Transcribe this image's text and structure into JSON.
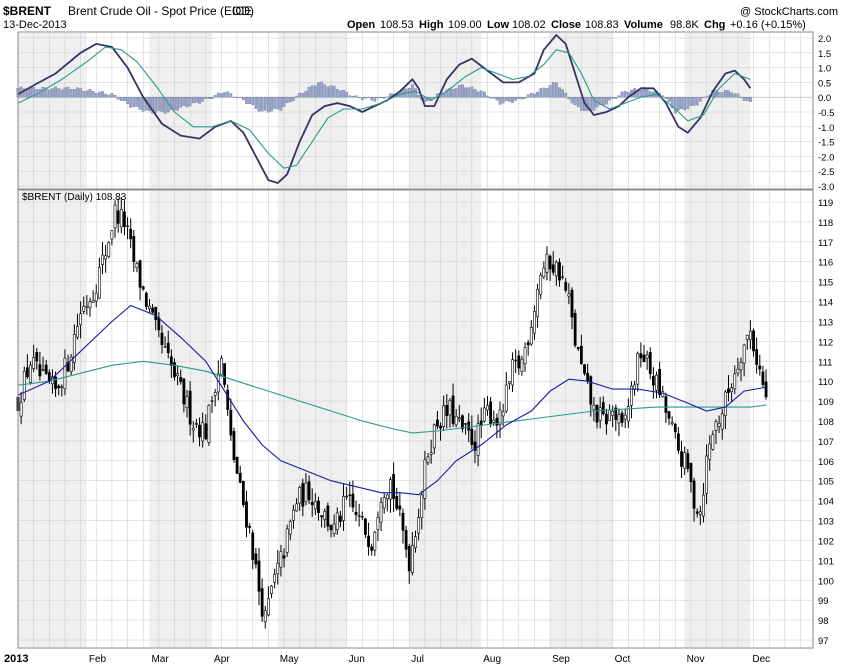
{
  "header": {
    "symbol": "$BRENT",
    "name": "Brent Crude Oil - Spot Price (EOD)",
    "exchange": "ICE",
    "date": "13-Dec-2013",
    "watermark": "@ StockCharts.com",
    "quote": {
      "open_label": "Open",
      "open": "108.53",
      "high_label": "High",
      "high": "109.00",
      "low_label": "Low",
      "low": "108.02",
      "close_label": "Close",
      "close": "108.83",
      "volume_label": "Volume",
      "volume": "98.8K",
      "chg_label": "Chg",
      "chg": "+0.16 (+0.15%)",
      "chg_color": "#cc0000"
    }
  },
  "chart_data": [
    {
      "type": "line",
      "panel": "indicator",
      "ylim": [
        -3.0,
        2.0
      ],
      "y_ticks": [
        "2.0",
        "1.5",
        "1.0",
        "0.5",
        "0.0",
        "-0.5",
        "-1.0",
        "-1.5",
        "-2.0",
        "-2.5",
        "-3.0"
      ],
      "series": [
        {
          "role": "macd",
          "color": "#333366",
          "points": [
            [
              0,
              0.1
            ],
            [
              5,
              0.4
            ],
            [
              12,
              0.8
            ],
            [
              20,
              1.5
            ],
            [
              25,
              1.8
            ],
            [
              30,
              1.7
            ],
            [
              35,
              1.0
            ],
            [
              40,
              0.0
            ],
            [
              46,
              -0.9
            ],
            [
              52,
              -1.3
            ],
            [
              58,
              -1.4
            ],
            [
              63,
              -1.0
            ],
            [
              68,
              -0.8
            ],
            [
              72,
              -1.2
            ],
            [
              76,
              -2.0
            ],
            [
              80,
              -2.8
            ],
            [
              83,
              -2.9
            ],
            [
              86,
              -2.6
            ],
            [
              90,
              -1.5
            ],
            [
              94,
              -0.6
            ],
            [
              98,
              -0.3
            ],
            [
              102,
              -0.2
            ],
            [
              106,
              -0.3
            ],
            [
              110,
              -0.5
            ],
            [
              114,
              -0.3
            ],
            [
              118,
              -0.1
            ],
            [
              122,
              0.2
            ],
            [
              126,
              0.6
            ],
            [
              128,
              0.3
            ],
            [
              130,
              -0.3
            ],
            [
              133,
              -0.3
            ],
            [
              137,
              0.6
            ],
            [
              141,
              1.1
            ],
            [
              145,
              1.3
            ],
            [
              150,
              0.9
            ],
            [
              155,
              0.5
            ],
            [
              160,
              0.5
            ],
            [
              165,
              0.8
            ],
            [
              168,
              1.6
            ],
            [
              172,
              2.1
            ],
            [
              175,
              1.8
            ],
            [
              178,
              0.8
            ],
            [
              181,
              -0.2
            ],
            [
              184,
              -0.6
            ],
            [
              188,
              -0.5
            ],
            [
              192,
              -0.3
            ],
            [
              195,
              0.0
            ],
            [
              199,
              0.3
            ],
            [
              203,
              0.3
            ],
            [
              207,
              -0.2
            ],
            [
              211,
              -1.0
            ],
            [
              214,
              -1.2
            ],
            [
              218,
              -0.7
            ],
            [
              222,
              0.2
            ],
            [
              226,
              0.8
            ],
            [
              229,
              0.9
            ],
            [
              232,
              0.6
            ],
            [
              234,
              0.3
            ]
          ]
        },
        {
          "role": "signal",
          "color": "#2a9a8a",
          "points": [
            [
              0,
              -0.2
            ],
            [
              6,
              0.1
            ],
            [
              14,
              0.6
            ],
            [
              22,
              1.2
            ],
            [
              28,
              1.7
            ],
            [
              33,
              1.6
            ],
            [
              38,
              1.2
            ],
            [
              44,
              0.4
            ],
            [
              50,
              -0.5
            ],
            [
              56,
              -1.0
            ],
            [
              62,
              -1.0
            ],
            [
              68,
              -0.8
            ],
            [
              74,
              -1.1
            ],
            [
              80,
              -1.9
            ],
            [
              85,
              -2.4
            ],
            [
              89,
              -2.3
            ],
            [
              94,
              -1.5
            ],
            [
              99,
              -0.7
            ],
            [
              104,
              -0.4
            ],
            [
              110,
              -0.4
            ],
            [
              116,
              -0.2
            ],
            [
              122,
              0.1
            ],
            [
              127,
              0.2
            ],
            [
              132,
              -0.1
            ],
            [
              137,
              0.2
            ],
            [
              143,
              0.7
            ],
            [
              148,
              1.0
            ],
            [
              153,
              0.8
            ],
            [
              158,
              0.6
            ],
            [
              163,
              0.7
            ],
            [
              168,
              1.1
            ],
            [
              172,
              1.6
            ],
            [
              176,
              1.5
            ],
            [
              180,
              0.8
            ],
            [
              184,
              -0.1
            ],
            [
              189,
              -0.4
            ],
            [
              194,
              -0.2
            ],
            [
              199,
              0.0
            ],
            [
              204,
              0.1
            ],
            [
              209,
              -0.3
            ],
            [
              214,
              -0.8
            ],
            [
              219,
              -0.6
            ],
            [
              224,
              0.3
            ],
            [
              229,
              0.8
            ],
            [
              234,
              0.6
            ]
          ]
        }
      ],
      "histogram": {
        "role": "macd-histogram",
        "color": "#9aa6c8",
        "values": [
          [
            0,
            0.3
          ],
          [
            6,
            0.3
          ],
          [
            12,
            0.3
          ],
          [
            18,
            0.3
          ],
          [
            24,
            0.2
          ],
          [
            30,
            0.1
          ],
          [
            36,
            -0.3
          ],
          [
            42,
            -0.5
          ],
          [
            48,
            -0.5
          ],
          [
            54,
            -0.3
          ],
          [
            60,
            -0.1
          ],
          [
            66,
            0.2
          ],
          [
            72,
            -0.1
          ],
          [
            78,
            -0.5
          ],
          [
            84,
            -0.4
          ],
          [
            90,
            0.1
          ],
          [
            96,
            0.5
          ],
          [
            102,
            0.3
          ],
          [
            108,
            0.0
          ],
          [
            114,
            -0.1
          ],
          [
            120,
            0.1
          ],
          [
            126,
            0.4
          ],
          [
            130,
            -0.2
          ],
          [
            136,
            0.2
          ],
          [
            142,
            0.4
          ],
          [
            148,
            0.2
          ],
          [
            154,
            -0.2
          ],
          [
            160,
            -0.1
          ],
          [
            166,
            0.2
          ],
          [
            172,
            0.5
          ],
          [
            178,
            -0.3
          ],
          [
            182,
            -0.5
          ],
          [
            188,
            -0.2
          ],
          [
            194,
            0.2
          ],
          [
            200,
            0.3
          ],
          [
            206,
            0.1
          ],
          [
            210,
            -0.5
          ],
          [
            216,
            -0.3
          ],
          [
            222,
            0.2
          ],
          [
            228,
            0.2
          ],
          [
            234,
            -0.2
          ]
        ]
      }
    },
    {
      "type": "candlestick",
      "panel": "price",
      "legend": "$BRENT (Daily) 108.83",
      "ylim": [
        97,
        119
      ],
      "y_ticks": [
        "119",
        "118",
        "117",
        "116",
        "115",
        "114",
        "113",
        "112",
        "111",
        "110",
        "109",
        "108",
        "107",
        "106",
        "105",
        "104",
        "103",
        "102",
        "101",
        "100",
        "99",
        "98",
        "97"
      ],
      "x_ticks": [
        {
          "label": "2013",
          "day": 0
        },
        {
          "label": "Feb",
          "day": 22
        },
        {
          "label": "Mar",
          "day": 42
        },
        {
          "label": "Apr",
          "day": 62
        },
        {
          "label": "May",
          "day": 83
        },
        {
          "label": "Jun",
          "day": 105
        },
        {
          "label": "Jul",
          "day": 125
        },
        {
          "label": "Aug",
          "day": 148
        },
        {
          "label": "Sep",
          "day": 170
        },
        {
          "label": "Oct",
          "day": 190
        },
        {
          "label": "Nov",
          "day": 213
        },
        {
          "label": "Dec",
          "day": 234
        }
      ],
      "days_total": 254,
      "close_path": [
        [
          0,
          109.0
        ],
        [
          4,
          111.0
        ],
        [
          8,
          110.0
        ],
        [
          12,
          109.5
        ],
        [
          16,
          111.0
        ],
        [
          20,
          113.5
        ],
        [
          24,
          114.5
        ],
        [
          28,
          116.5
        ],
        [
          31,
          118.5
        ],
        [
          34,
          118.0
        ],
        [
          37,
          116.0
        ],
        [
          40,
          114.5
        ],
        [
          44,
          112.5
        ],
        [
          48,
          111.0
        ],
        [
          52,
          109.5
        ],
        [
          56,
          108.0
        ],
        [
          60,
          107.5
        ],
        [
          63,
          110.0
        ],
        [
          65,
          111.0
        ],
        [
          68,
          107.0
        ],
        [
          71,
          104.5
        ],
        [
          74,
          102.5
        ],
        [
          77,
          99.5
        ],
        [
          79,
          98.0
        ],
        [
          81,
          99.5
        ],
        [
          85,
          101.5
        ],
        [
          89,
          104.0
        ],
        [
          93,
          104.5
        ],
        [
          97,
          103.5
        ],
        [
          101,
          102.5
        ],
        [
          105,
          104.0
        ],
        [
          109,
          103.0
        ],
        [
          113,
          102.0
        ],
        [
          116,
          104.5
        ],
        [
          119,
          105.0
        ],
        [
          122,
          103.0
        ],
        [
          125,
          101.0
        ],
        [
          128,
          103.5
        ],
        [
          131,
          106.5
        ],
        [
          134,
          108.0
        ],
        [
          138,
          108.5
        ],
        [
          142,
          107.5
        ],
        [
          146,
          107.0
        ],
        [
          150,
          108.5
        ],
        [
          154,
          108.0
        ],
        [
          158,
          110.5
        ],
        [
          161,
          111.0
        ],
        [
          164,
          113.0
        ],
        [
          167,
          115.5
        ],
        [
          170,
          116.0
        ],
        [
          173,
          115.5
        ],
        [
          176,
          114.0
        ],
        [
          178,
          112.0
        ],
        [
          181,
          110.0
        ],
        [
          184,
          108.5
        ],
        [
          187,
          108.0
        ],
        [
          190,
          108.5
        ],
        [
          193,
          107.5
        ],
        [
          196,
          109.5
        ],
        [
          199,
          111.5
        ],
        [
          202,
          110.5
        ],
        [
          205,
          109.5
        ],
        [
          208,
          108.0
        ],
        [
          211,
          106.5
        ],
        [
          214,
          105.5
        ],
        [
          216,
          104.0
        ],
        [
          218,
          103.5
        ],
        [
          220,
          106.0
        ],
        [
          222,
          107.5
        ],
        [
          225,
          108.5
        ],
        [
          228,
          110.0
        ],
        [
          231,
          111.5
        ],
        [
          234,
          112.5
        ],
        [
          237,
          110.5
        ],
        [
          239,
          109.0
        ]
      ],
      "sma50": {
        "color": "#1a1aa6",
        "points": [
          [
            0,
            109.3
          ],
          [
            10,
            110.0
          ],
          [
            20,
            111.5
          ],
          [
            30,
            113.0
          ],
          [
            36,
            113.8
          ],
          [
            44,
            113.3
          ],
          [
            52,
            112.2
          ],
          [
            60,
            111.0
          ],
          [
            66,
            109.5
          ],
          [
            72,
            108.0
          ],
          [
            78,
            106.8
          ],
          [
            84,
            106.0
          ],
          [
            92,
            105.5
          ],
          [
            100,
            105.0
          ],
          [
            108,
            104.7
          ],
          [
            116,
            104.4
          ],
          [
            122,
            104.4
          ],
          [
            128,
            104.3
          ],
          [
            134,
            105.0
          ],
          [
            140,
            106.0
          ],
          [
            148,
            106.8
          ],
          [
            156,
            107.8
          ],
          [
            164,
            108.5
          ],
          [
            170,
            109.5
          ],
          [
            176,
            110.1
          ],
          [
            182,
            110.0
          ],
          [
            190,
            109.6
          ],
          [
            198,
            109.6
          ],
          [
            206,
            109.4
          ],
          [
            214,
            108.9
          ],
          [
            220,
            108.5
          ],
          [
            226,
            108.7
          ],
          [
            232,
            109.5
          ],
          [
            239,
            109.7
          ]
        ]
      },
      "sma200": {
        "color": "#2a9a8a",
        "points": [
          [
            0,
            109.8
          ],
          [
            10,
            110.0
          ],
          [
            20,
            110.4
          ],
          [
            30,
            110.8
          ],
          [
            40,
            111.0
          ],
          [
            50,
            110.8
          ],
          [
            60,
            110.5
          ],
          [
            70,
            110.0
          ],
          [
            80,
            109.5
          ],
          [
            90,
            109.0
          ],
          [
            100,
            108.5
          ],
          [
            110,
            108.0
          ],
          [
            120,
            107.6
          ],
          [
            126,
            107.4
          ],
          [
            134,
            107.5
          ],
          [
            144,
            107.7
          ],
          [
            154,
            107.9
          ],
          [
            164,
            108.1
          ],
          [
            174,
            108.3
          ],
          [
            184,
            108.5
          ],
          [
            194,
            108.6
          ],
          [
            204,
            108.7
          ],
          [
            214,
            108.7
          ],
          [
            224,
            108.7
          ],
          [
            234,
            108.7
          ],
          [
            239,
            108.8
          ]
        ]
      }
    }
  ]
}
